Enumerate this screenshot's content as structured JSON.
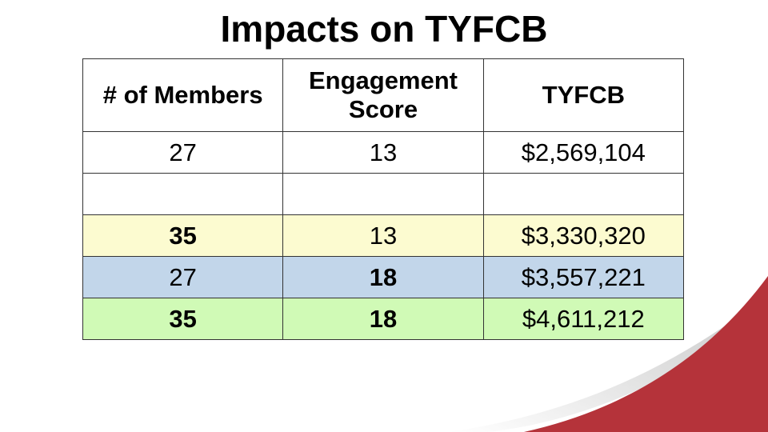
{
  "title": "Impacts on TYFCB",
  "table": {
    "headers": [
      {
        "text": "# of Members"
      },
      {
        "text": "Engagement Score"
      },
      {
        "text": "TYFCB"
      }
    ],
    "rows": [
      {
        "bg": "#ffffff",
        "cells": [
          {
            "text": "27",
            "bold": false
          },
          {
            "text": "13",
            "bold": false
          },
          {
            "text": "$2,569,104",
            "bold": false
          }
        ]
      },
      {
        "bg": "#ffffff",
        "cells": [
          {
            "text": "",
            "bold": false
          },
          {
            "text": "",
            "bold": false
          },
          {
            "text": "",
            "bold": false
          }
        ]
      },
      {
        "bg": "#fcfbd0",
        "cells": [
          {
            "text": "35",
            "bold": true
          },
          {
            "text": "13",
            "bold": false
          },
          {
            "text": "$3,330,320",
            "bold": false
          }
        ]
      },
      {
        "bg": "#c2d6ea",
        "cells": [
          {
            "text": "27",
            "bold": false
          },
          {
            "text": "18",
            "bold": true
          },
          {
            "text": "$3,557,221",
            "bold": false
          }
        ]
      },
      {
        "bg": "#d0fab6",
        "cells": [
          {
            "text": "35",
            "bold": true
          },
          {
            "text": "18",
            "bold": true
          },
          {
            "text": "$4,611,212",
            "bold": false
          }
        ]
      }
    ]
  },
  "colors": {
    "accent_red": "#b5333a",
    "swoosh_gray": "#d6d6d6"
  }
}
